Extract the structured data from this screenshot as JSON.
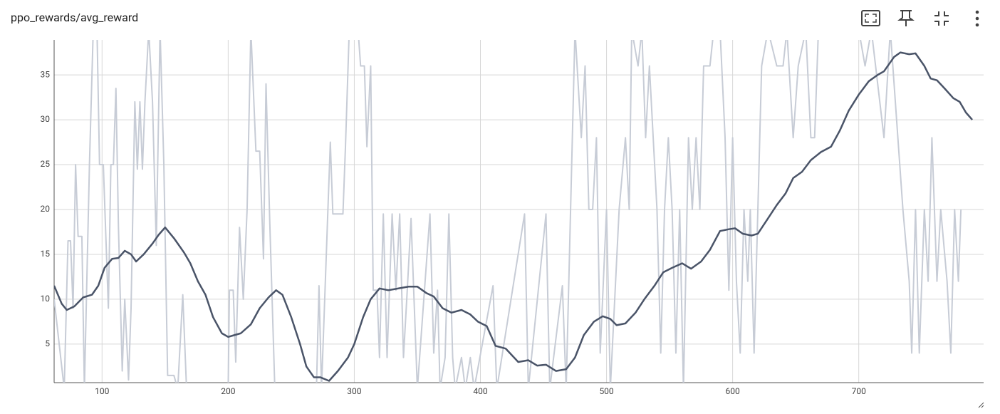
{
  "chart_data": {
    "type": "line",
    "title": "ppo_rewards/avg_reward",
    "xlim": [
      62,
      799
    ],
    "ylim": [
      0.7,
      38.9
    ],
    "xticks": [
      100,
      200,
      300,
      400,
      500,
      600,
      700
    ],
    "yticks": [
      5,
      10,
      15,
      20,
      25,
      30,
      35
    ],
    "grid": true,
    "series": [
      {
        "color": "#c7ccd6",
        "width": 2,
        "x": [
          62,
          70,
          73,
          75,
          77,
          79,
          81,
          84,
          86,
          90,
          93,
          96,
          98,
          101,
          103,
          105,
          107,
          109,
          111,
          113,
          116,
          118,
          121,
          123,
          126,
          128,
          130,
          132,
          134,
          137,
          140,
          143,
          146,
          149,
          152,
          157,
          160,
          164,
          167,
          200,
          201,
          204,
          206,
          209,
          212,
          215,
          218,
          222,
          225,
          228,
          230,
          233,
          237,
          270,
          272,
          274,
          281,
          283,
          291,
          293,
          296,
          303,
          305,
          308,
          310,
          313,
          315,
          318,
          320,
          323,
          326,
          330,
          333,
          336,
          339,
          342,
          345,
          350,
          360,
          363,
          366,
          368,
          372,
          375,
          378,
          380,
          385,
          388,
          392,
          395,
          410,
          413,
          435,
          438,
          452,
          455,
          465,
          468,
          475,
          480,
          483,
          486,
          489,
          492,
          495,
          500,
          503,
          510,
          515,
          518,
          520,
          525,
          528,
          531,
          534,
          537,
          540,
          543,
          546,
          549,
          552,
          555,
          558,
          561,
          565,
          568,
          571,
          574,
          577,
          582,
          585,
          590,
          594,
          597,
          600,
          603,
          606,
          609,
          612,
          614,
          617,
          620,
          623,
          628,
          635,
          640,
          643,
          648,
          652,
          658,
          662,
          665,
          668,
          700,
          705,
          710,
          720,
          725,
          735,
          740,
          742,
          745,
          748,
          752,
          755,
          758,
          762,
          765,
          770,
          773,
          776,
          779,
          781
        ],
        "values": [
          10,
          0,
          16.5,
          16.5,
          9,
          25,
          17,
          17,
          0,
          25,
          40,
          40,
          25,
          25,
          17,
          9,
          25,
          25,
          33.5,
          18,
          2,
          10,
          1,
          9,
          32,
          24.5,
          32,
          24.5,
          32,
          40,
          32,
          16,
          40,
          25,
          1.5,
          1.5,
          0,
          10.5,
          0,
          0,
          11,
          11,
          3,
          18,
          10,
          20,
          40,
          26.5,
          26.5,
          14.5,
          34,
          18.5,
          0,
          0,
          11.5,
          0,
          27.5,
          19.5,
          19.5,
          27,
          40,
          40,
          36,
          36,
          27,
          36,
          11,
          11,
          3.5,
          19.5,
          3.5,
          19.5,
          11,
          19.5,
          3.5,
          11,
          19,
          0,
          19.5,
          4,
          11,
          0,
          3.5,
          19.5,
          3.5,
          0,
          3.5,
          0,
          3.5,
          0,
          11.5,
          0,
          19.5,
          0,
          19.5,
          0,
          11.5,
          0,
          40,
          28,
          36,
          20,
          20,
          28,
          4,
          20,
          0,
          20,
          28,
          20,
          40,
          36,
          40,
          28,
          36,
          28,
          20,
          4,
          20,
          28,
          20,
          4,
          20,
          0,
          28,
          20,
          28,
          20,
          36,
          36,
          40,
          40,
          28,
          11,
          28,
          12,
          4,
          20,
          12,
          20,
          4,
          20,
          36,
          40,
          36,
          36,
          40,
          28,
          36,
          40,
          28,
          28,
          40,
          40,
          36,
          40,
          28,
          40,
          20,
          12,
          4,
          20,
          4,
          20,
          12,
          28,
          12,
          20,
          12,
          4,
          20,
          12,
          20
        ]
      },
      {
        "color": "#4a5468",
        "width": 2.5,
        "x": [
          62,
          68,
          72,
          78,
          85,
          92,
          97,
          102,
          108,
          113,
          118,
          123,
          127,
          133,
          140,
          145,
          150,
          157,
          165,
          170,
          176,
          182,
          188,
          195,
          200,
          205,
          210,
          218,
          225,
          232,
          238,
          243,
          250,
          257,
          262,
          268,
          273,
          280,
          287,
          295,
          300,
          307,
          313,
          320,
          327,
          335,
          343,
          350,
          357,
          363,
          370,
          377,
          385,
          392,
          398,
          405,
          412,
          420,
          430,
          438,
          445,
          452,
          460,
          468,
          475,
          482,
          490,
          497,
          503,
          508,
          515,
          523,
          530,
          538,
          545,
          552,
          560,
          567,
          575,
          582,
          590,
          597,
          602,
          608,
          615,
          620,
          628,
          635,
          642,
          648,
          655,
          662,
          670,
          678,
          685,
          692,
          700,
          708,
          715,
          720,
          728,
          733,
          740,
          745,
          752,
          757,
          762,
          768,
          775,
          780,
          785,
          790
        ],
        "values": [
          11.5,
          9.5,
          8.8,
          9.2,
          10.2,
          10.5,
          11.5,
          13.5,
          14.5,
          14.6,
          15.4,
          15.0,
          14.2,
          15.0,
          16.2,
          17.2,
          18.0,
          16.8,
          15.2,
          14.0,
          12.0,
          10.5,
          8.0,
          6.2,
          5.8,
          6.0,
          6.2,
          7.2,
          9.0,
          10.2,
          11.0,
          10.5,
          8.0,
          5.0,
          2.5,
          1.3,
          1.3,
          0.9,
          2.0,
          3.5,
          5.0,
          8.0,
          10.0,
          11.2,
          11.0,
          11.2,
          11.4,
          11.4,
          10.7,
          10.3,
          9.0,
          8.5,
          8.8,
          8.3,
          7.5,
          7.0,
          4.8,
          4.5,
          3.0,
          3.2,
          2.6,
          2.7,
          2.0,
          2.2,
          3.5,
          6.0,
          7.5,
          8.1,
          7.8,
          7.1,
          7.3,
          8.5,
          10.0,
          11.5,
          13.0,
          13.5,
          14.0,
          13.4,
          14.2,
          15.5,
          17.6,
          17.8,
          17.9,
          17.3,
          17.1,
          17.3,
          19.0,
          20.5,
          21.8,
          23.5,
          24.2,
          25.5,
          26.4,
          27.0,
          28.8,
          31.0,
          32.8,
          34.3,
          35.0,
          35.4,
          37.0,
          37.5,
          37.3,
          37.4,
          36.0,
          34.6,
          34.4,
          33.5,
          32.4,
          32.0,
          30.8,
          30.0
        ]
      }
    ]
  }
}
